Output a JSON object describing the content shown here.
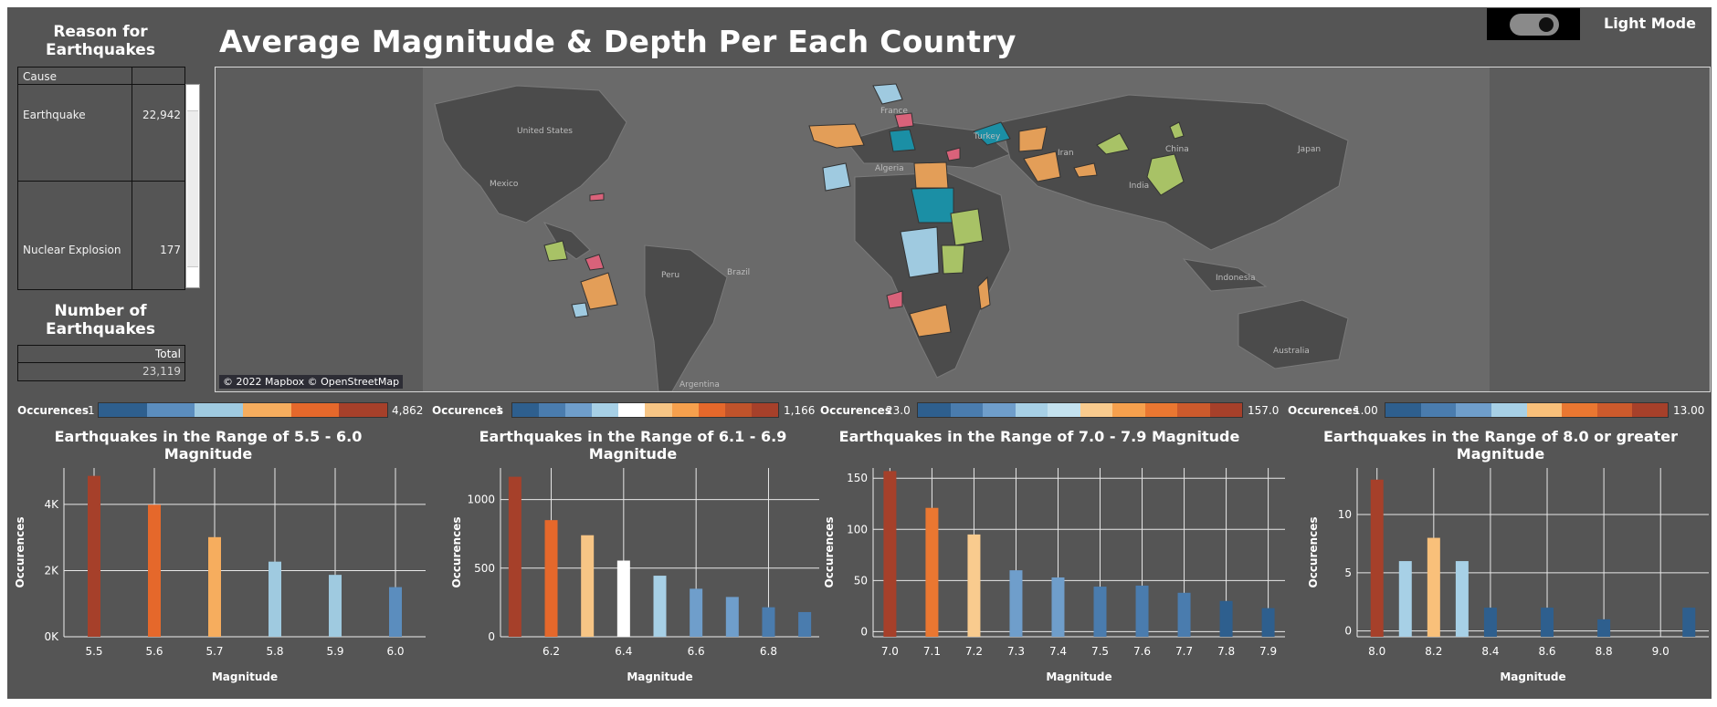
{
  "header": {
    "title": "Average Magnitude & Depth Per Each Country",
    "mode_label": "Light Mode"
  },
  "reasons": {
    "title": "Reason for Earthquakes",
    "column_header": "Cause",
    "rows": [
      {
        "cause": "Earthquake",
        "count": "22,942"
      },
      {
        "cause": "Nuclear Explosion",
        "count": "177"
      }
    ]
  },
  "number_of_earthquakes": {
    "title": "Number of Earthquakes",
    "column_header": "Total",
    "value": "23,119"
  },
  "map": {
    "attribution": "© 2022 Mapbox © OpenStreetMap",
    "place_labels": [
      "United States",
      "Mexico",
      "Peru",
      "Brazil",
      "Argentina",
      "France",
      "Turkey",
      "Iran",
      "Algeria",
      "India",
      "China",
      "Japan",
      "Indonesia",
      "Australia"
    ]
  },
  "legends": [
    {
      "label": "Occurences",
      "min": "1",
      "max": "4,862",
      "colors": [
        "#2e5f8e",
        "#5b8dbe",
        "#9fcae0",
        "#f6ad5e",
        "#e5682b",
        "#a6402a"
      ]
    },
    {
      "label": "Occurences",
      "min": "1",
      "max": "1,166",
      "colors": [
        "#2e5f8e",
        "#4a7cae",
        "#6f9ecb",
        "#a7d0e6",
        "#ffffff",
        "#f7c585",
        "#f6a04d",
        "#e5682b",
        "#c0532b",
        "#a6402a"
      ]
    },
    {
      "label": "Occurences",
      "min": "23.0",
      "max": "157.0",
      "colors": [
        "#2e5f8e",
        "#4a7cae",
        "#6f9ecb",
        "#a7d0e6",
        "#c4e2ef",
        "#f9cb8e",
        "#f6a04d",
        "#ea7731",
        "#cc5a2c",
        "#a6402a"
      ]
    },
    {
      "label": "Occurences",
      "min": "1.00",
      "max": "13.00",
      "colors": [
        "#2e5f8e",
        "#4a7cae",
        "#6f9ecb",
        "#a7d0e6",
        "#f9c07a",
        "#ea7731",
        "#cc5a2c",
        "#a6402a"
      ]
    }
  ],
  "chart_data": [
    {
      "type": "bar",
      "title": "Earthquakes in the Range of 5.5 - 6.0 Magnitude",
      "xlabel": "Magnitude",
      "ylabel": "Occurences",
      "x": [
        5.5,
        5.6,
        5.7,
        5.8,
        5.9,
        6.0
      ],
      "values": [
        4862,
        3990,
        3010,
        2270,
        1870,
        1500
      ],
      "colors": [
        "#a6402a",
        "#e5682b",
        "#f6ad5e",
        "#9fcae0",
        "#9fcae0",
        "#5b8dbe"
      ],
      "xlim": [
        5.45,
        6.05
      ],
      "ylim": [
        0,
        5100
      ],
      "x_ticks": [
        5.5,
        5.6,
        5.7,
        5.8,
        5.9,
        6.0
      ],
      "x_tick_labels": [
        "5.5",
        "5.6",
        "5.7",
        "5.8",
        "5.9",
        "6.0"
      ],
      "y_ticks": [
        0,
        2000,
        4000
      ],
      "y_tick_labels": [
        "0K",
        "2K",
        "4K"
      ],
      "grid": true
    },
    {
      "type": "bar",
      "title": "Earthquakes in the Range of 6.1 - 6.9 Magnitude",
      "xlabel": "Magnitude",
      "ylabel": "Occurences",
      "x": [
        6.1,
        6.2,
        6.3,
        6.4,
        6.5,
        6.6,
        6.7,
        6.8,
        6.9
      ],
      "values": [
        1166,
        850,
        740,
        555,
        445,
        350,
        290,
        215,
        180
      ],
      "colors": [
        "#a6402a",
        "#e5682b",
        "#f7c585",
        "#ffffff",
        "#a7d0e6",
        "#6f9ecb",
        "#6f9ecb",
        "#4a7cae",
        "#4a7cae"
      ],
      "xlim": [
        6.06,
        6.94
      ],
      "ylim": [
        0,
        1230
      ],
      "x_ticks": [
        6.2,
        6.4,
        6.6,
        6.8
      ],
      "x_tick_labels": [
        "6.2",
        "6.4",
        "6.6",
        "6.8"
      ],
      "y_ticks": [
        0,
        500,
        1000
      ],
      "y_tick_labels": [
        "0",
        "500",
        "1000"
      ],
      "grid": true
    },
    {
      "type": "bar",
      "title": "Earthquakes in the Range of 7.0 - 7.9 Magnitude",
      "xlabel": "Magnitude",
      "ylabel": "Occurences",
      "x": [
        7.0,
        7.1,
        7.2,
        7.3,
        7.4,
        7.5,
        7.6,
        7.7,
        7.8,
        7.9
      ],
      "values": [
        157,
        121,
        95,
        60,
        53,
        44,
        45,
        38,
        30,
        23
      ],
      "colors": [
        "#a6402a",
        "#ea7731",
        "#f9cb8e",
        "#6f9ecb",
        "#6f9ecb",
        "#4a7cae",
        "#4a7cae",
        "#4a7cae",
        "#2e5f8e",
        "#2e5f8e"
      ],
      "xlim": [
        6.96,
        7.94
      ],
      "ylim": [
        -5,
        160
      ],
      "x_ticks": [
        7.0,
        7.1,
        7.2,
        7.3,
        7.4,
        7.5,
        7.6,
        7.7,
        7.8,
        7.9
      ],
      "x_tick_labels": [
        "7.0",
        "7.1",
        "7.2",
        "7.3",
        "7.4",
        "7.5",
        "7.6",
        "7.7",
        "7.8",
        "7.9"
      ],
      "y_ticks": [
        0,
        50,
        100,
        150
      ],
      "y_tick_labels": [
        "0",
        "50",
        "100",
        "150"
      ],
      "grid": true
    },
    {
      "type": "bar",
      "title": "Earthquakes in the Range of 8.0 or greater Magnitude",
      "xlabel": "Magnitude",
      "ylabel": "Occurences",
      "x": [
        8.0,
        8.1,
        8.2,
        8.3,
        8.4,
        8.6,
        8.8,
        9.1
      ],
      "values": [
        13,
        6,
        8,
        6,
        2,
        2,
        1,
        2
      ],
      "colors": [
        "#a6402a",
        "#a7d0e6",
        "#f9c07a",
        "#a7d0e6",
        "#2e5f8e",
        "#2e5f8e",
        "#2e5f8e",
        "#2e5f8e"
      ],
      "xlim": [
        7.93,
        9.17
      ],
      "ylim": [
        -0.5,
        14
      ],
      "x_ticks": [
        8.0,
        8.2,
        8.4,
        8.6,
        8.8,
        9.0
      ],
      "x_tick_labels": [
        "8.0",
        "8.2",
        "8.4",
        "8.6",
        "8.8",
        "9.0"
      ],
      "y_ticks": [
        0,
        5,
        10
      ],
      "y_tick_labels": [
        "0",
        "5",
        "10"
      ],
      "grid": true
    }
  ]
}
